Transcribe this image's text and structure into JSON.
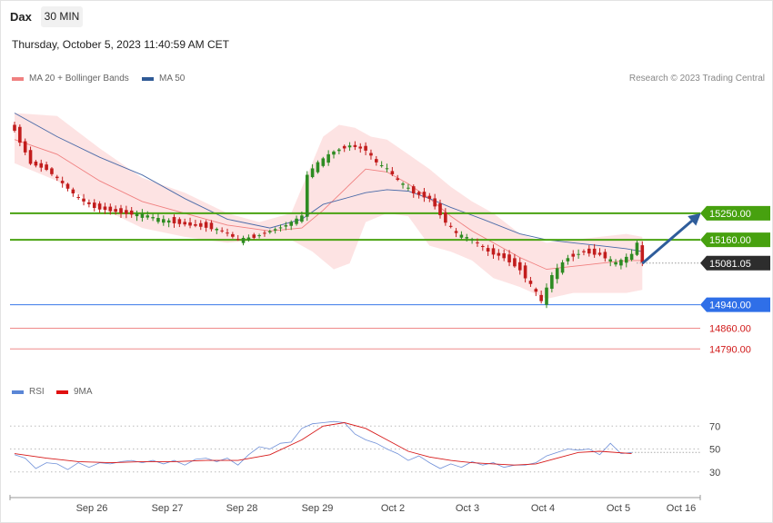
{
  "header": {
    "instrument": "Dax",
    "timeframe": "30 MIN",
    "datetime": "Thursday, October 5, 2023 11:40:59 AM CET",
    "credit": "Research © 2023 Trading Central"
  },
  "legend": {
    "ma20_label": "MA 20 + Bollinger Bands",
    "ma50_label": "MA 50",
    "rsi_label": "RSI",
    "rsi_ma_label": "9MA"
  },
  "colors": {
    "bull": "#2e8b22",
    "bear": "#c21d1d",
    "band_fill": "#fde3e3",
    "ma20": "#f08080",
    "ma50": "#4a6aa8",
    "resistance": "#4aa312",
    "pivot": "#3a78e8",
    "support": "#ef8a8a",
    "current": "#333333",
    "arrow": "#2f5d9b"
  },
  "chart_data": [
    {
      "type": "candlestick",
      "title": "Dax",
      "interval": "30 MIN",
      "ylim": [
        14680,
        15690
      ],
      "x_ticks": [
        "Sep 26",
        "Sep 27",
        "Sep 28",
        "Sep 29",
        "Oct 2",
        "Oct 3",
        "Oct 4",
        "Oct 5",
        "Oct 16"
      ],
      "close_path": [
        [
          0,
          15530
        ],
        [
          3,
          15420
        ],
        [
          6,
          15400
        ],
        [
          9,
          15350
        ],
        [
          12,
          15300
        ],
        [
          15,
          15270
        ],
        [
          18,
          15260
        ],
        [
          21,
          15250
        ],
        [
          24,
          15245
        ],
        [
          27,
          15230
        ],
        [
          30,
          15220
        ],
        [
          33,
          15210
        ],
        [
          36,
          15205
        ],
        [
          39,
          15190
        ],
        [
          42,
          15160
        ],
        [
          45,
          15170
        ],
        [
          48,
          15190
        ],
        [
          51,
          15210
        ],
        [
          54,
          15240
        ],
        [
          55,
          15380
        ],
        [
          57,
          15420
        ],
        [
          60,
          15460
        ],
        [
          63,
          15480
        ],
        [
          66,
          15465
        ],
        [
          68,
          15420
        ],
        [
          70,
          15400
        ],
        [
          72,
          15360
        ],
        [
          75,
          15320
        ],
        [
          78,
          15300
        ],
        [
          81,
          15220
        ],
        [
          83,
          15180
        ],
        [
          86,
          15160
        ],
        [
          89,
          15120
        ],
        [
          92,
          15100
        ],
        [
          95,
          15060
        ],
        [
          98,
          14980
        ],
        [
          99,
          14950
        ],
        [
          101,
          15040
        ],
        [
          104,
          15100
        ],
        [
          107,
          15120
        ],
        [
          110,
          15110
        ],
        [
          113,
          15080
        ],
        [
          116,
          15110
        ],
        [
          117,
          15150
        ],
        [
          118,
          15081
        ]
      ],
      "bollinger": {
        "upper": [
          [
            0,
            15590
          ],
          [
            8,
            15580
          ],
          [
            16,
            15470
          ],
          [
            24,
            15370
          ],
          [
            32,
            15320
          ],
          [
            40,
            15250
          ],
          [
            46,
            15220
          ],
          [
            52,
            15250
          ],
          [
            55,
            15380
          ],
          [
            58,
            15510
          ],
          [
            61,
            15550
          ],
          [
            64,
            15540
          ],
          [
            67,
            15510
          ],
          [
            70,
            15500
          ],
          [
            74,
            15450
          ],
          [
            78,
            15400
          ],
          [
            82,
            15340
          ],
          [
            86,
            15290
          ],
          [
            90,
            15250
          ],
          [
            95,
            15180
          ],
          [
            100,
            15150
          ],
          [
            105,
            15160
          ],
          [
            110,
            15170
          ],
          [
            115,
            15180
          ],
          [
            118,
            15170
          ]
        ],
        "lower": [
          [
            0,
            15420
          ],
          [
            8,
            15360
          ],
          [
            16,
            15270
          ],
          [
            24,
            15200
          ],
          [
            32,
            15170
          ],
          [
            40,
            15150
          ],
          [
            46,
            15160
          ],
          [
            52,
            15160
          ],
          [
            56,
            15120
          ],
          [
            60,
            15060
          ],
          [
            63,
            15080
          ],
          [
            66,
            15220
          ],
          [
            70,
            15250
          ],
          [
            74,
            15240
          ],
          [
            78,
            15140
          ],
          [
            82,
            15120
          ],
          [
            86,
            15090
          ],
          [
            90,
            15030
          ],
          [
            95,
            15000
          ],
          [
            100,
            14960
          ],
          [
            105,
            14980
          ],
          [
            110,
            14980
          ],
          [
            115,
            14980
          ],
          [
            118,
            14990
          ]
        ]
      },
      "series": [
        {
          "name": "MA 20 + Bollinger Bands",
          "points": [
            [
              0,
              15500
            ],
            [
              8,
              15450
            ],
            [
              16,
              15360
            ],
            [
              24,
              15290
            ],
            [
              32,
              15250
            ],
            [
              40,
              15210
            ],
            [
              48,
              15190
            ],
            [
              54,
              15200
            ],
            [
              58,
              15260
            ],
            [
              62,
              15330
            ],
            [
              66,
              15400
            ],
            [
              70,
              15390
            ],
            [
              74,
              15350
            ],
            [
              78,
              15300
            ],
            [
              82,
              15240
            ],
            [
              86,
              15190
            ],
            [
              90,
              15150
            ],
            [
              95,
              15100
            ],
            [
              100,
              15060
            ],
            [
              105,
              15070
            ],
            [
              110,
              15080
            ],
            [
              115,
              15090
            ],
            [
              118,
              15090
            ]
          ]
        },
        {
          "name": "MA 50",
          "points": [
            [
              0,
              15590
            ],
            [
              8,
              15510
            ],
            [
              16,
              15440
            ],
            [
              24,
              15380
            ],
            [
              32,
              15300
            ],
            [
              40,
              15230
            ],
            [
              48,
              15200
            ],
            [
              54,
              15230
            ],
            [
              58,
              15280
            ],
            [
              62,
              15300
            ],
            [
              66,
              15320
            ],
            [
              70,
              15330
            ],
            [
              74,
              15325
            ],
            [
              78,
              15300
            ],
            [
              82,
              15270
            ],
            [
              88,
              15230
            ],
            [
              95,
              15180
            ],
            [
              100,
              15160
            ],
            [
              105,
              15150
            ],
            [
              110,
              15140
            ],
            [
              115,
              15130
            ],
            [
              118,
              15120
            ]
          ]
        }
      ],
      "levels": [
        {
          "value": 15250.0,
          "label": "15250.00",
          "kind": "resistance"
        },
        {
          "value": 15160.0,
          "label": "15160.00",
          "kind": "resistance"
        },
        {
          "value": 15081.05,
          "label": "15081.05",
          "kind": "current"
        },
        {
          "value": 14940.0,
          "label": "14940.00",
          "kind": "pivot"
        },
        {
          "value": 14860.0,
          "label": "14860.00",
          "kind": "support"
        },
        {
          "value": 14790.0,
          "label": "14790.00",
          "kind": "support"
        }
      ],
      "projection": {
        "from": [
          118,
          15080
        ],
        "to": [
          129,
          15250
        ]
      }
    },
    {
      "type": "line",
      "title": "RSI",
      "ylim": [
        10,
        90
      ],
      "y_ticks": [
        70,
        50,
        30
      ],
      "series": [
        {
          "name": "RSI",
          "points": [
            [
              0,
              45
            ],
            [
              2,
              42
            ],
            [
              4,
              33
            ],
            [
              6,
              38
            ],
            [
              8,
              37
            ],
            [
              10,
              32
            ],
            [
              12,
              38
            ],
            [
              14,
              34
            ],
            [
              16,
              38
            ],
            [
              18,
              37
            ],
            [
              20,
              39
            ],
            [
              22,
              40
            ],
            [
              24,
              38
            ],
            [
              26,
              40
            ],
            [
              28,
              37
            ],
            [
              30,
              40
            ],
            [
              32,
              36
            ],
            [
              34,
              41
            ],
            [
              36,
              42
            ],
            [
              38,
              39
            ],
            [
              40,
              42
            ],
            [
              42,
              36
            ],
            [
              44,
              45
            ],
            [
              46,
              52
            ],
            [
              48,
              50
            ],
            [
              50,
              55
            ],
            [
              52,
              56
            ],
            [
              54,
              68
            ],
            [
              56,
              72
            ],
            [
              58,
              73
            ],
            [
              60,
              74
            ],
            [
              62,
              73
            ],
            [
              64,
              63
            ],
            [
              66,
              58
            ],
            [
              68,
              55
            ],
            [
              70,
              50
            ],
            [
              72,
              46
            ],
            [
              74,
              40
            ],
            [
              76,
              44
            ],
            [
              78,
              38
            ],
            [
              80,
              33
            ],
            [
              82,
              37
            ],
            [
              84,
              34
            ],
            [
              86,
              39
            ],
            [
              88,
              36
            ],
            [
              90,
              38
            ],
            [
              92,
              34
            ],
            [
              94,
              36
            ],
            [
              96,
              36
            ],
            [
              98,
              38
            ],
            [
              100,
              44
            ],
            [
              102,
              47
            ],
            [
              104,
              50
            ],
            [
              106,
              49
            ],
            [
              108,
              50
            ],
            [
              110,
              45
            ],
            [
              112,
              55
            ],
            [
              114,
              46
            ],
            [
              116,
              47
            ]
          ]
        },
        {
          "name": "9MA",
          "points": [
            [
              0,
              46
            ],
            [
              6,
              42
            ],
            [
              12,
              39
            ],
            [
              18,
              38
            ],
            [
              24,
              39
            ],
            [
              30,
              39
            ],
            [
              36,
              40
            ],
            [
              42,
              40
            ],
            [
              48,
              45
            ],
            [
              54,
              58
            ],
            [
              58,
              70
            ],
            [
              62,
              73
            ],
            [
              66,
              68
            ],
            [
              70,
              58
            ],
            [
              74,
              48
            ],
            [
              78,
              43
            ],
            [
              82,
              40
            ],
            [
              86,
              38
            ],
            [
              90,
              37
            ],
            [
              94,
              36
            ],
            [
              98,
              37
            ],
            [
              102,
              42
            ],
            [
              106,
              47
            ],
            [
              110,
              48
            ],
            [
              116,
              46
            ]
          ]
        }
      ]
    }
  ]
}
